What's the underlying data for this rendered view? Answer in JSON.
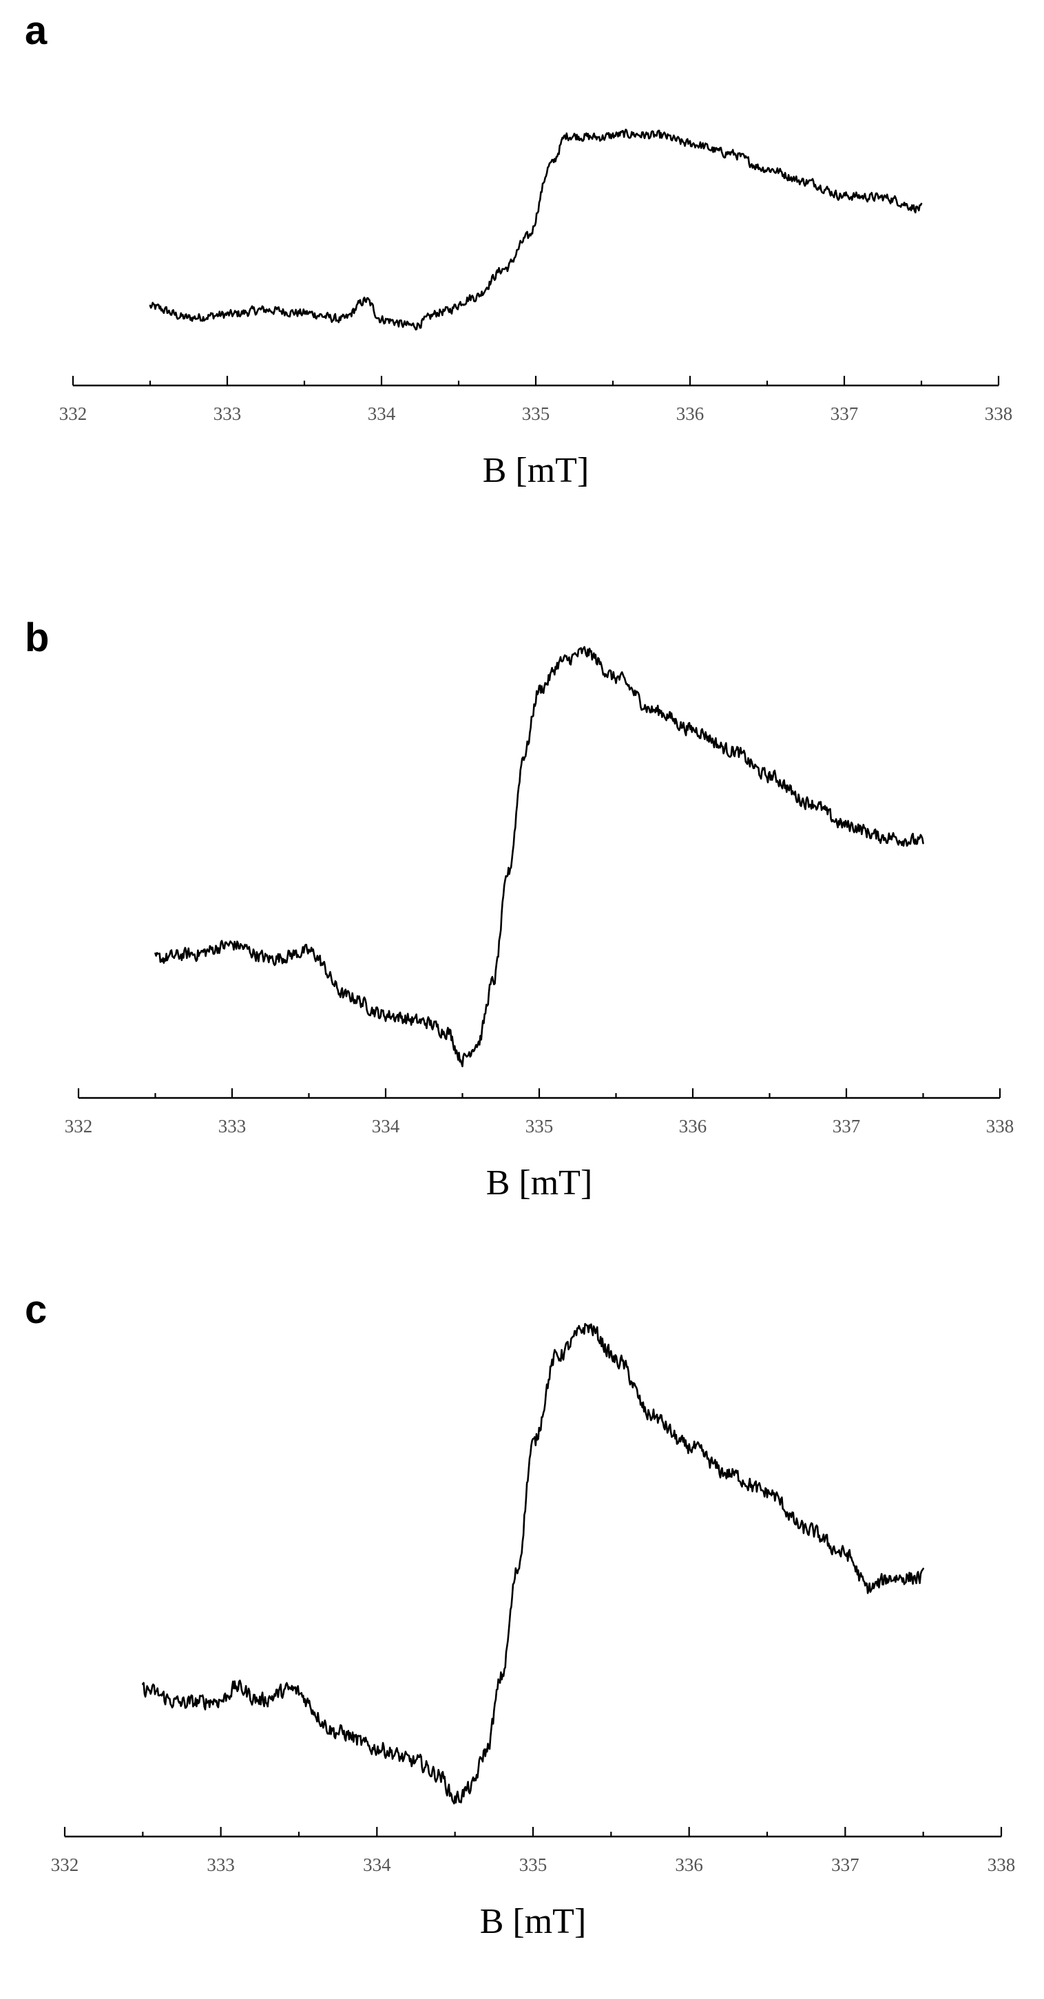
{
  "chart_data": [
    {
      "type": "line",
      "panel_label": "a",
      "xlabel": "B [mT]",
      "ylabel": "",
      "xlim": [
        332,
        338
      ],
      "ylim": [
        -1,
        1
      ],
      "x_ticks": [
        "332",
        "333",
        "334",
        "335",
        "336",
        "337",
        "338"
      ],
      "grid": false,
      "series": [
        {
          "x": [
            332.5,
            332.75,
            333.0,
            333.25,
            333.5,
            333.75,
            333.9,
            334.0,
            334.2,
            334.4,
            334.6,
            334.8,
            334.95,
            335.1,
            335.2,
            335.4,
            335.6,
            335.8,
            336.0,
            336.25,
            336.5,
            336.75,
            337.0,
            337.25,
            337.5
          ],
          "y": [
            -0.72,
            -0.79,
            -0.77,
            -0.74,
            -0.76,
            -0.8,
            -0.68,
            -0.8,
            -0.84,
            -0.75,
            -0.66,
            -0.48,
            -0.28,
            0.18,
            0.36,
            0.35,
            0.37,
            0.36,
            0.31,
            0.25,
            0.15,
            0.07,
            -0.02,
            -0.03,
            -0.1
          ]
        }
      ]
    },
    {
      "type": "line",
      "panel_label": "b",
      "xlabel": "B [mT]",
      "ylabel": "",
      "xlim": [
        332,
        338
      ],
      "ylim": [
        -1,
        1
      ],
      "x_ticks": [
        "332",
        "333",
        "334",
        "335",
        "336",
        "337",
        "338"
      ],
      "grid": false,
      "series": [
        {
          "x": [
            332.5,
            332.75,
            333.0,
            333.25,
            333.5,
            333.75,
            334.0,
            334.25,
            334.4,
            334.5,
            334.6,
            334.7,
            334.8,
            334.9,
            335.0,
            335.15,
            335.3,
            335.5,
            335.75,
            336.0,
            336.25,
            336.5,
            336.75,
            337.0,
            337.25,
            337.5
          ],
          "y": [
            -0.42,
            -0.4,
            -0.36,
            -0.42,
            -0.39,
            -0.58,
            -0.66,
            -0.69,
            -0.73,
            -0.85,
            -0.78,
            -0.52,
            -0.05,
            0.45,
            0.73,
            0.85,
            0.89,
            0.78,
            0.64,
            0.56,
            0.47,
            0.36,
            0.25,
            0.15,
            0.1,
            0.08
          ]
        }
      ]
    },
    {
      "type": "line",
      "panel_label": "c",
      "xlabel": "B [mT]",
      "ylabel": "",
      "xlim": [
        332,
        338
      ],
      "ylim": [
        -1,
        1
      ],
      "x_ticks": [
        "332",
        "333",
        "334",
        "335",
        "336",
        "337",
        "338"
      ],
      "grid": false,
      "series": [
        {
          "x": [
            332.5,
            332.75,
            333.0,
            333.1,
            333.25,
            333.45,
            333.75,
            334.0,
            334.25,
            334.4,
            334.5,
            334.6,
            334.7,
            334.8,
            334.9,
            335.0,
            335.15,
            335.35,
            335.55,
            335.75,
            336.0,
            336.25,
            336.5,
            336.75,
            337.0,
            337.15,
            337.3,
            337.5
          ],
          "y": [
            -0.47,
            -0.52,
            -0.51,
            -0.46,
            -0.51,
            -0.47,
            -0.63,
            -0.69,
            -0.74,
            -0.79,
            -0.88,
            -0.84,
            -0.7,
            -0.42,
            -0.02,
            0.45,
            0.78,
            0.89,
            0.76,
            0.56,
            0.44,
            0.34,
            0.27,
            0.13,
            0.04,
            -0.09,
            -0.05,
            -0.05
          ]
        }
      ]
    }
  ]
}
